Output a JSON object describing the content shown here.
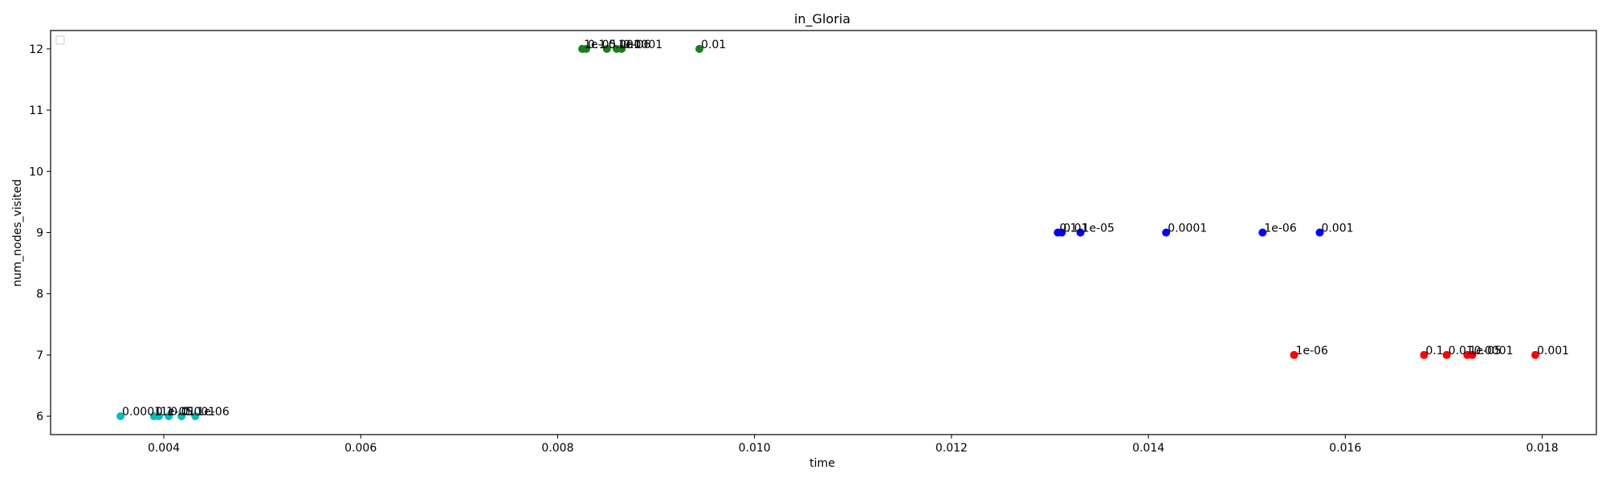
{
  "chart_data": {
    "type": "scatter",
    "title": "in_Gloria",
    "xlabel": "time",
    "ylabel": "num_nodes_visited",
    "xlim": [
      0.00285,
      0.01855
    ],
    "ylim": [
      5.7,
      12.3
    ],
    "x_ticks": [
      0.004,
      0.006,
      0.008,
      0.01,
      0.012,
      0.014,
      0.016,
      0.018
    ],
    "x_tick_labels": [
      "0.004",
      "0.006",
      "0.008",
      "0.010",
      "0.012",
      "0.014",
      "0.016",
      "0.018"
    ],
    "y_ticks": [
      6,
      7,
      8,
      9,
      10,
      11,
      12
    ],
    "y_tick_labels": [
      "6",
      "7",
      "8",
      "9",
      "10",
      "11",
      "12"
    ],
    "grid": false,
    "legend": {
      "placement": "top-left",
      "entries": []
    },
    "series": [
      {
        "color": "#1a7f1a",
        "points": [
          {
            "x": 0.00825,
            "y": 12,
            "label": "1e-05"
          },
          {
            "x": 0.00829,
            "y": 12,
            "label": "0.1"
          },
          {
            "x": 0.0085,
            "y": 12,
            "label": "0.001"
          },
          {
            "x": 0.0086,
            "y": 12,
            "label": "1e-06"
          },
          {
            "x": 0.00865,
            "y": 12,
            "label": "0.0001"
          },
          {
            "x": 0.00944,
            "y": 12,
            "label": "0.01"
          }
        ]
      },
      {
        "color": "#0000ff",
        "points": [
          {
            "x": 0.01308,
            "y": 9,
            "label": "0.1"
          },
          {
            "x": 0.01312,
            "y": 9,
            "label": "0.01"
          },
          {
            "x": 0.01331,
            "y": 9,
            "label": "1e-05"
          },
          {
            "x": 0.01418,
            "y": 9,
            "label": "0.0001"
          },
          {
            "x": 0.01516,
            "y": 9,
            "label": "1e-06"
          },
          {
            "x": 0.01574,
            "y": 9,
            "label": "0.001"
          }
        ]
      },
      {
        "color": "#ff0000",
        "points": [
          {
            "x": 0.01548,
            "y": 7,
            "label": "1e-06"
          },
          {
            "x": 0.0168,
            "y": 7,
            "label": "0.1"
          },
          {
            "x": 0.01703,
            "y": 7,
            "label": "0.01"
          },
          {
            "x": 0.01724,
            "y": 7,
            "label": "1e-05"
          },
          {
            "x": 0.01729,
            "y": 7,
            "label": "0.0001"
          },
          {
            "x": 0.01793,
            "y": 7,
            "label": "0.001"
          }
        ]
      },
      {
        "color": "#00bfbf",
        "points": [
          {
            "x": 0.00356,
            "y": 6,
            "label": "0.0001"
          },
          {
            "x": 0.0039,
            "y": 6,
            "label": "0.1"
          },
          {
            "x": 0.00395,
            "y": 6,
            "label": "1e-05"
          },
          {
            "x": 0.00405,
            "y": 6,
            "label": "0.01"
          },
          {
            "x": 0.00418,
            "y": 6,
            "label": "0.001"
          },
          {
            "x": 0.00432,
            "y": 6,
            "label": "1e-06"
          }
        ]
      }
    ]
  }
}
